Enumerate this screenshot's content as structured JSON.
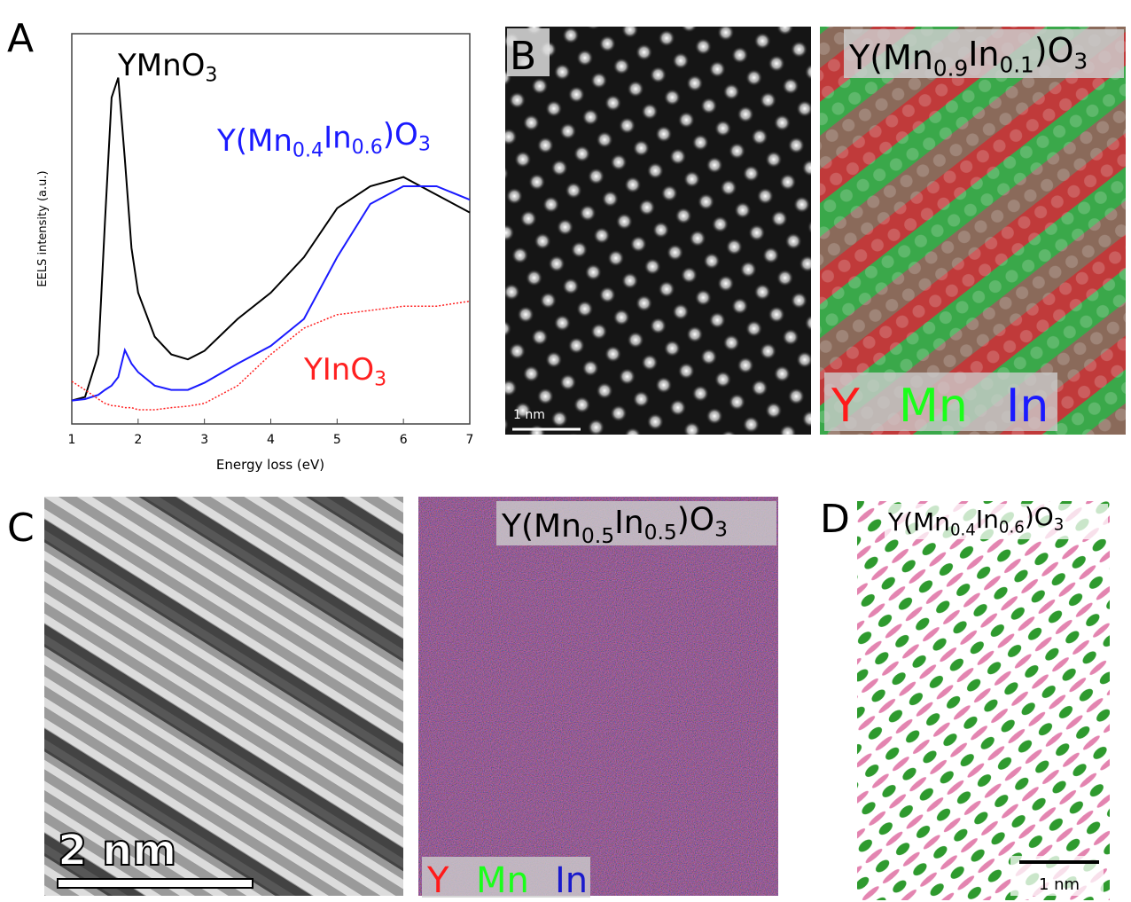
{
  "chart_data": {
    "type": "line",
    "xlabel": "Energy loss (eV)",
    "ylabel": "EELS intensity (a.u.)",
    "x": [
      1,
      1.2,
      1.4,
      1.5,
      1.6,
      1.7,
      1.8,
      1.9,
      2,
      2.25,
      2.5,
      2.75,
      3,
      3.5,
      4,
      4.5,
      5,
      5.5,
      6,
      6.5,
      7
    ],
    "series": [
      {
        "name": "YMnO3",
        "color": "#000000",
        "values": [
          0.33,
          0.38,
          0.98,
          2.85,
          4.6,
          4.88,
          3.73,
          2.48,
          1.85,
          1.23,
          0.98,
          0.91,
          1.03,
          1.48,
          1.85,
          2.35,
          3.04,
          3.35,
          3.48,
          3.23,
          2.98
        ]
      },
      {
        "name": "Y(Mn0.4In0.6)O3",
        "color": "#1a1aff",
        "values": [
          0.33,
          0.35,
          0.41,
          0.48,
          0.54,
          0.66,
          1.04,
          0.85,
          0.73,
          0.54,
          0.48,
          0.48,
          0.58,
          0.85,
          1.1,
          1.48,
          2.35,
          3.1,
          3.35,
          3.35,
          3.16
        ]
      },
      {
        "name": "YInO3",
        "color": "#ff2020",
        "values": [
          0.6,
          0.48,
          0.35,
          0.29,
          0.26,
          0.25,
          0.23,
          0.23,
          0.2,
          0.2,
          0.23,
          0.25,
          0.29,
          0.54,
          0.98,
          1.35,
          1.54,
          1.6,
          1.66,
          1.66,
          1.73
        ]
      }
    ],
    "xlim": [
      1,
      7
    ],
    "xticks": [
      1,
      2,
      3,
      4,
      5,
      6,
      7
    ],
    "ylim": [
      0,
      5.5
    ]
  },
  "panels": {
    "A": {
      "label": "A"
    },
    "B": {
      "label": "B",
      "scale_bar": "1 nm",
      "formula": "Y(Mn0.9In0.1)O3",
      "elements": [
        "Y",
        "Mn",
        "In"
      ]
    },
    "C": {
      "label": "C",
      "scale_bar": "2 nm",
      "formula": "Y(Mn0.5In0.5)O3",
      "elements": [
        "Y",
        "Mn",
        "In"
      ]
    },
    "D": {
      "label": "D",
      "scale_bar": "1 nm",
      "formula": "Y(Mn0.4In0.6)O3"
    }
  }
}
